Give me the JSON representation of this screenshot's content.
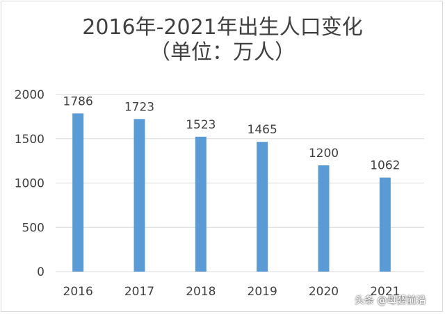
{
  "chart_data": {
    "type": "bar",
    "title": "2016年-2021年出生人口变化",
    "subtitle": "（单位：万人）",
    "categories": [
      "2016",
      "2017",
      "2018",
      "2019",
      "2020",
      "2021"
    ],
    "values": [
      1786,
      1723,
      1523,
      1465,
      1200,
      1062
    ],
    "data_labels": [
      "1786",
      "1723",
      "1523",
      "1465",
      "1200",
      "1062"
    ],
    "ylim": [
      0,
      2000
    ],
    "yticks": [
      0,
      500,
      1000,
      1500,
      2000
    ],
    "xlabel": "",
    "ylabel": "",
    "grid": true,
    "bar_color": "#5b9bd5",
    "grid_color": "#d9d9d9"
  },
  "watermark": "头条 @母婴前沿"
}
